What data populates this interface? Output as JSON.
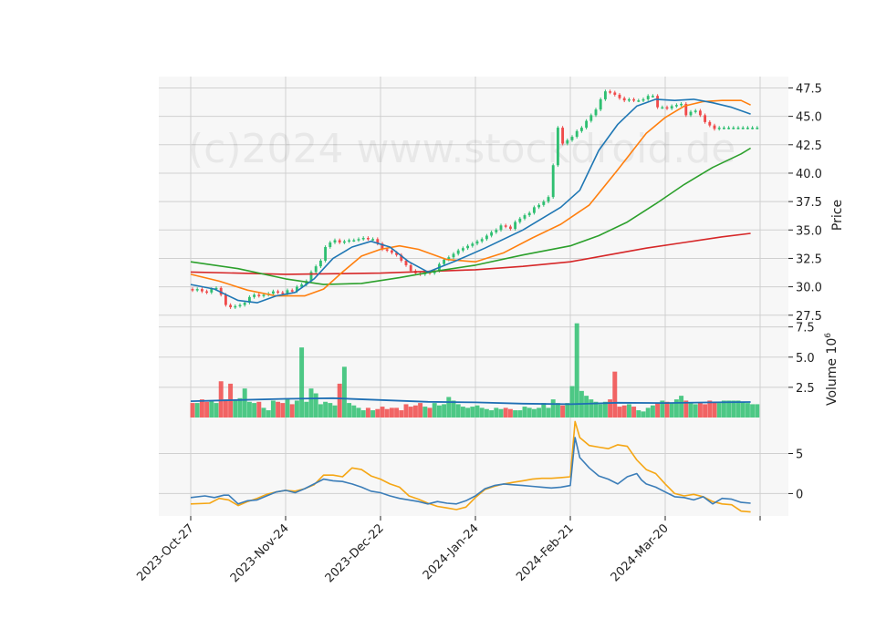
{
  "chart_data": {
    "type": "candlestick",
    "watermark": "(c)2024 www.stockdroid.de",
    "colors": {
      "up": "#2fbf71",
      "down": "#f04a4a",
      "ma_fast": "#1f77b4",
      "ma_mid": "#ff7f0e",
      "ma_slow": "#2ca02c",
      "ma_long": "#d62728",
      "volume_ma": "#1f6fb4",
      "osc_blue": "#3b7db8",
      "osc_orange": "#f5a614",
      "grid": "#d0d0d0",
      "panel_bg": "#f7f7f7"
    },
    "x_ticks": [
      {
        "label": "2023-Oct-27",
        "index": 0
      },
      {
        "label": "2023-Nov-24",
        "index": 20
      },
      {
        "label": "2023-Dec-22",
        "index": 40
      },
      {
        "label": "2024-Jan-24",
        "index": 60
      },
      {
        "label": "2024-Feb-21",
        "index": 80
      },
      {
        "label": "2024-Mar-20",
        "index": 100
      }
    ],
    "x_extra_tick_index": 120,
    "n_bars": 120,
    "price_panel": {
      "ylabel": "Price",
      "ylim": [
        27.0,
        48.5
      ],
      "yticks": [
        "27.5",
        "30.0",
        "32.5",
        "35.0",
        "37.5",
        "40.0",
        "42.5",
        "45.0",
        "47.5"
      ],
      "close": [
        29.7,
        29.8,
        29.6,
        29.5,
        29.8,
        29.9,
        29.3,
        28.4,
        28.2,
        28.3,
        28.4,
        28.6,
        29.1,
        29.3,
        29.2,
        29.3,
        29.4,
        29.6,
        29.5,
        29.4,
        29.7,
        29.6,
        30.0,
        30.2,
        30.5,
        31.3,
        31.8,
        32.3,
        33.5,
        33.9,
        34.1,
        33.9,
        34.0,
        34.1,
        34.1,
        34.2,
        34.3,
        34.2,
        34.2,
        33.8,
        33.3,
        33.2,
        33.0,
        32.8,
        32.3,
        31.9,
        31.4,
        31.2,
        31.1,
        31.3,
        31.2,
        31.4,
        32.0,
        32.4,
        32.6,
        32.9,
        33.2,
        33.4,
        33.6,
        33.8,
        34.0,
        34.2,
        34.5,
        34.8,
        35.0,
        35.4,
        35.3,
        35.1,
        35.7,
        36.0,
        36.3,
        36.5,
        37.0,
        37.2,
        37.5,
        37.9,
        40.7,
        44.0,
        42.6,
        42.9,
        43.2,
        43.7,
        44.0,
        44.6,
        45.1,
        45.6,
        46.5,
        47.2,
        47.1,
        46.9,
        46.6,
        46.4,
        46.5,
        46.4,
        46.4,
        46.5,
        46.8,
        46.8,
        45.8,
        45.8,
        45.7,
        45.9,
        46.0,
        46.1,
        45.1,
        45.4,
        45.5,
        45.1,
        44.5,
        44.2,
        43.9,
        44.0,
        44.0,
        44.0,
        44.0,
        44.0,
        44.0,
        44.0,
        44.0,
        44.0
      ],
      "ma_fast_points": [
        [
          0,
          30.2
        ],
        [
          5,
          29.8
        ],
        [
          10,
          28.8
        ],
        [
          14,
          28.6
        ],
        [
          18,
          29.2
        ],
        [
          22,
          29.5
        ],
        [
          26,
          30.7
        ],
        [
          30,
          32.5
        ],
        [
          34,
          33.5
        ],
        [
          38,
          34.0
        ],
        [
          42,
          33.5
        ],
        [
          46,
          32.2
        ],
        [
          50,
          31.3
        ],
        [
          56,
          32.3
        ],
        [
          62,
          33.4
        ],
        [
          70,
          35.0
        ],
        [
          78,
          37.0
        ],
        [
          82,
          38.5
        ],
        [
          86,
          42.0
        ],
        [
          90,
          44.3
        ],
        [
          94,
          45.9
        ],
        [
          98,
          46.5
        ],
        [
          102,
          46.4
        ],
        [
          106,
          46.5
        ],
        [
          110,
          46.2
        ],
        [
          114,
          45.8
        ],
        [
          118,
          45.2
        ]
      ],
      "ma_mid_points": [
        [
          0,
          31.1
        ],
        [
          6,
          30.5
        ],
        [
          12,
          29.7
        ],
        [
          18,
          29.2
        ],
        [
          24,
          29.2
        ],
        [
          28,
          29.8
        ],
        [
          32,
          31.3
        ],
        [
          36,
          32.7
        ],
        [
          40,
          33.3
        ],
        [
          44,
          33.6
        ],
        [
          48,
          33.3
        ],
        [
          54,
          32.4
        ],
        [
          60,
          32.2
        ],
        [
          66,
          33.0
        ],
        [
          72,
          34.3
        ],
        [
          78,
          35.5
        ],
        [
          84,
          37.2
        ],
        [
          90,
          40.3
        ],
        [
          96,
          43.5
        ],
        [
          100,
          44.9
        ],
        [
          104,
          45.9
        ],
        [
          108,
          46.3
        ],
        [
          112,
          46.4
        ],
        [
          116,
          46.4
        ],
        [
          118,
          46.0
        ]
      ],
      "ma_slow_points": [
        [
          0,
          32.2
        ],
        [
          10,
          31.6
        ],
        [
          20,
          30.7
        ],
        [
          28,
          30.2
        ],
        [
          36,
          30.3
        ],
        [
          44,
          30.8
        ],
        [
          52,
          31.4
        ],
        [
          60,
          31.9
        ],
        [
          70,
          32.8
        ],
        [
          80,
          33.6
        ],
        [
          86,
          34.5
        ],
        [
          92,
          35.7
        ],
        [
          98,
          37.3
        ],
        [
          104,
          39.0
        ],
        [
          110,
          40.5
        ],
        [
          116,
          41.7
        ],
        [
          118,
          42.2
        ]
      ],
      "ma_long_points": [
        [
          0,
          31.3
        ],
        [
          20,
          31.1
        ],
        [
          40,
          31.2
        ],
        [
          60,
          31.5
        ],
        [
          70,
          31.8
        ],
        [
          80,
          32.2
        ],
        [
          88,
          32.8
        ],
        [
          96,
          33.4
        ],
        [
          104,
          33.9
        ],
        [
          112,
          34.4
        ],
        [
          118,
          34.7
        ]
      ]
    },
    "volume_panel": {
      "ylabel": "Volume  10",
      "ylabel_exponent": "6",
      "ylim": [
        0,
        8.0
      ],
      "yticks": [
        "2.5",
        "5.0",
        "7.5"
      ],
      "values": [
        1.2,
        1.2,
        1.5,
        1.3,
        1.4,
        1.2,
        3.0,
        1.5,
        2.8,
        1.4,
        1.6,
        2.4,
        1.3,
        1.2,
        1.3,
        0.8,
        0.6,
        1.4,
        1.3,
        1.2,
        1.5,
        1.1,
        1.4,
        5.8,
        1.3,
        2.4,
        2.0,
        1.1,
        1.3,
        1.2,
        1.0,
        2.8,
        4.2,
        1.2,
        1.0,
        0.8,
        0.6,
        0.8,
        0.6,
        0.7,
        0.9,
        0.7,
        0.8,
        0.8,
        0.6,
        1.1,
        0.9,
        1.0,
        1.2,
        0.9,
        0.8,
        1.2,
        1.0,
        1.1,
        1.7,
        1.4,
        1.1,
        0.9,
        0.8,
        0.9,
        1.0,
        0.8,
        0.7,
        0.6,
        0.8,
        0.7,
        0.8,
        0.7,
        0.6,
        0.6,
        0.9,
        0.8,
        0.7,
        0.8,
        1.2,
        0.8,
        1.5,
        1.2,
        1.0,
        1.2,
        2.6,
        7.8,
        2.2,
        1.8,
        1.5,
        1.3,
        1.1,
        1.3,
        1.5,
        3.8,
        0.9,
        1.0,
        1.1,
        0.9,
        0.6,
        0.5,
        0.8,
        1.0,
        1.2,
        1.4,
        1.3,
        1.2,
        1.5,
        1.8,
        1.4,
        1.2,
        1.1,
        1.2,
        1.1,
        1.4,
        1.3,
        1.2,
        1.4,
        1.4,
        1.4,
        1.4,
        1.3,
        1.2,
        1.1,
        1.1
      ],
      "ma_points": [
        [
          0,
          1.35
        ],
        [
          10,
          1.45
        ],
        [
          20,
          1.55
        ],
        [
          30,
          1.6
        ],
        [
          40,
          1.45
        ],
        [
          50,
          1.3
        ],
        [
          60,
          1.25
        ],
        [
          70,
          1.15
        ],
        [
          80,
          1.1
        ],
        [
          90,
          1.22
        ],
        [
          100,
          1.2
        ],
        [
          110,
          1.25
        ],
        [
          118,
          1.28
        ]
      ]
    },
    "oscillator_panel": {
      "ylim": [
        -2.8,
        9.5
      ],
      "yticks": [
        "0",
        "5"
      ],
      "blue_points": [
        [
          0,
          -0.5
        ],
        [
          3,
          -0.3
        ],
        [
          5,
          -0.5
        ],
        [
          7,
          -0.2
        ],
        [
          8,
          -0.2
        ],
        [
          10,
          -1.3
        ],
        [
          12,
          -0.9
        ],
        [
          14,
          -0.8
        ],
        [
          16,
          -0.3
        ],
        [
          18,
          0.2
        ],
        [
          20,
          0.4
        ],
        [
          22,
          0.1
        ],
        [
          24,
          0.6
        ],
        [
          26,
          1.2
        ],
        [
          28,
          1.8
        ],
        [
          30,
          1.6
        ],
        [
          32,
          1.5
        ],
        [
          34,
          1.2
        ],
        [
          36,
          0.8
        ],
        [
          38,
          0.3
        ],
        [
          40,
          0.1
        ],
        [
          42,
          -0.3
        ],
        [
          44,
          -0.6
        ],
        [
          46,
          -0.8
        ],
        [
          48,
          -1.0
        ],
        [
          50,
          -1.3
        ],
        [
          52,
          -1.0
        ],
        [
          54,
          -1.2
        ],
        [
          56,
          -1.3
        ],
        [
          58,
          -0.9
        ],
        [
          60,
          -0.3
        ],
        [
          62,
          0.6
        ],
        [
          64,
          1.0
        ],
        [
          66,
          1.2
        ],
        [
          68,
          1.1
        ],
        [
          70,
          1.0
        ],
        [
          72,
          0.9
        ],
        [
          74,
          0.8
        ],
        [
          76,
          0.7
        ],
        [
          78,
          0.8
        ],
        [
          80,
          1.0
        ],
        [
          81,
          7.0
        ],
        [
          82,
          4.5
        ],
        [
          84,
          3.2
        ],
        [
          86,
          2.2
        ],
        [
          88,
          1.8
        ],
        [
          90,
          1.2
        ],
        [
          92,
          2.1
        ],
        [
          94,
          2.5
        ],
        [
          95,
          1.7
        ],
        [
          96,
          1.2
        ],
        [
          98,
          0.8
        ],
        [
          100,
          0.2
        ],
        [
          102,
          -0.4
        ],
        [
          104,
          -0.5
        ],
        [
          106,
          -0.8
        ],
        [
          108,
          -0.4
        ],
        [
          110,
          -1.3
        ],
        [
          112,
          -0.6
        ],
        [
          114,
          -0.7
        ],
        [
          116,
          -1.1
        ],
        [
          118,
          -1.2
        ]
      ],
      "orange_points": [
        [
          0,
          -1.3
        ],
        [
          4,
          -1.2
        ],
        [
          6,
          -0.6
        ],
        [
          8,
          -0.8
        ],
        [
          10,
          -1.5
        ],
        [
          12,
          -1.0
        ],
        [
          14,
          -0.6
        ],
        [
          16,
          -0.1
        ],
        [
          18,
          0.2
        ],
        [
          20,
          0.4
        ],
        [
          22,
          0.3
        ],
        [
          24,
          0.6
        ],
        [
          26,
          1.1
        ],
        [
          28,
          2.3
        ],
        [
          30,
          2.3
        ],
        [
          32,
          2.1
        ],
        [
          34,
          3.2
        ],
        [
          36,
          3.0
        ],
        [
          38,
          2.2
        ],
        [
          40,
          1.8
        ],
        [
          42,
          1.2
        ],
        [
          44,
          0.8
        ],
        [
          46,
          -0.3
        ],
        [
          48,
          -0.7
        ],
        [
          50,
          -1.2
        ],
        [
          52,
          -1.6
        ],
        [
          54,
          -1.8
        ],
        [
          56,
          -2.0
        ],
        [
          58,
          -1.7
        ],
        [
          60,
          -0.5
        ],
        [
          62,
          0.5
        ],
        [
          64,
          0.9
        ],
        [
          66,
          1.2
        ],
        [
          68,
          1.4
        ],
        [
          70,
          1.6
        ],
        [
          72,
          1.8
        ],
        [
          74,
          1.9
        ],
        [
          76,
          1.9
        ],
        [
          78,
          2.0
        ],
        [
          80,
          2.1
        ],
        [
          81,
          9.0
        ],
        [
          82,
          7.0
        ],
        [
          84,
          6.0
        ],
        [
          86,
          5.8
        ],
        [
          88,
          5.6
        ],
        [
          90,
          6.1
        ],
        [
          92,
          5.9
        ],
        [
          94,
          4.2
        ],
        [
          96,
          3.0
        ],
        [
          98,
          2.5
        ],
        [
          100,
          1.2
        ],
        [
          102,
          0.0
        ],
        [
          104,
          -0.3
        ],
        [
          106,
          -0.1
        ],
        [
          108,
          -0.4
        ],
        [
          110,
          -1.0
        ],
        [
          112,
          -1.3
        ],
        [
          114,
          -1.4
        ],
        [
          116,
          -2.2
        ],
        [
          118,
          -2.3
        ]
      ]
    }
  }
}
